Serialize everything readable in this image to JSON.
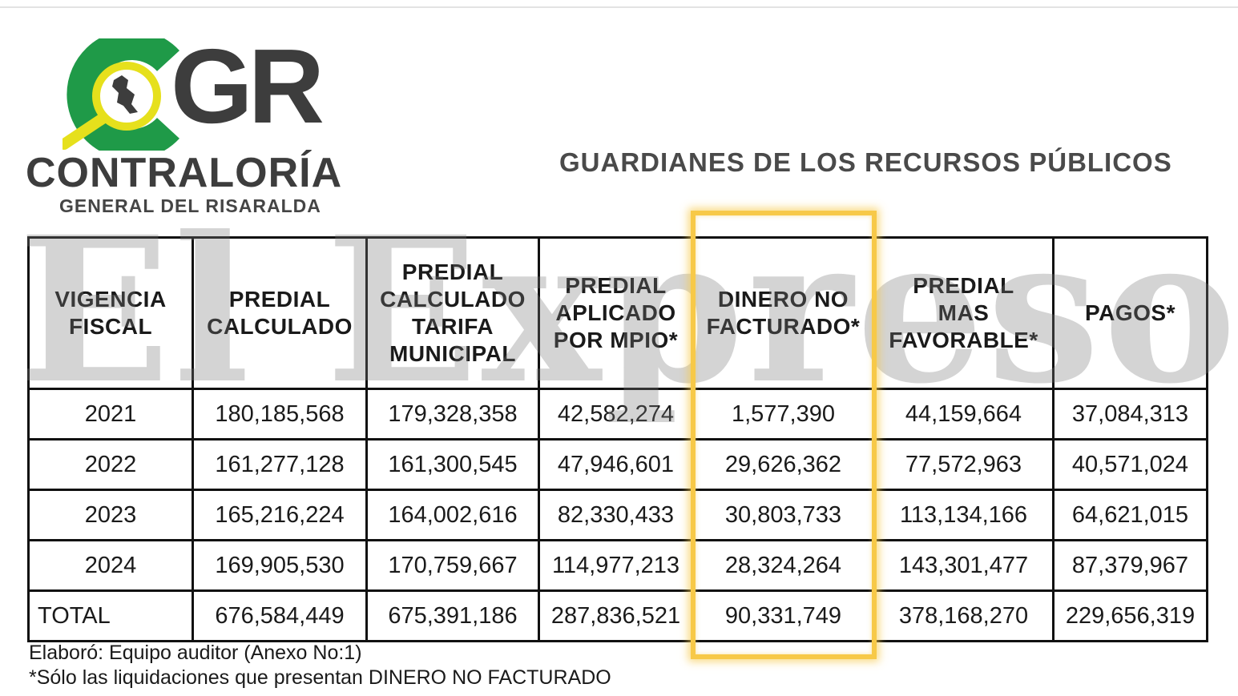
{
  "logo": {
    "acronym": "GR",
    "name": "CONTRALORÍA",
    "subtitle": "GENERAL DEL RISARALDA",
    "colors": {
      "green": "#1f9a48",
      "yellow": "#e6e01c",
      "dark": "#3d3d3d"
    }
  },
  "slogan": "GUARDIANES DE LOS RECURSOS PÚBLICOS",
  "watermark": "El Expreso",
  "table": {
    "headers": [
      [
        "VIGENCIA",
        "FISCAL"
      ],
      [
        "PREDIAL",
        "CALCULADO"
      ],
      [
        "PREDIAL",
        "CALCULADO",
        "TARIFA",
        "MUNICIPAL"
      ],
      [
        "PREDIAL",
        "APLICADO",
        "POR MPIO*"
      ],
      [
        "DINERO NO",
        "FACTURADO*"
      ],
      [
        "PREDIAL",
        "MAS",
        "FAVORABLE*"
      ],
      [
        "PAGOS*"
      ]
    ],
    "rows": [
      [
        "2021",
        "180,185,568",
        "179,328,358",
        "42,582,274",
        "1,577,390",
        "44,159,664",
        "37,084,313"
      ],
      [
        "2022",
        "161,277,128",
        "161,300,545",
        "47,946,601",
        "29,626,362",
        "77,572,963",
        "40,571,024"
      ],
      [
        "2023",
        "165,216,224",
        "164,002,616",
        "82,330,433",
        "30,803,733",
        "113,134,166",
        "64,621,015"
      ],
      [
        "2024",
        "169,905,530",
        "170,759,667",
        "114,977,213",
        "28,324,264",
        "143,301,477",
        "87,379,967"
      ]
    ],
    "total": [
      "TOTAL",
      "676,584,449",
      "675,391,186",
      "287,836,521",
      "90,331,749",
      "378,168,270",
      "229,656,319"
    ],
    "highlight_color": "#f7c948"
  },
  "footnotes": [
    "Elaboró: Equipo auditor (Anexo No:1)",
    "*Sólo las liquidaciones que presentan DINERO NO FACTURADO"
  ]
}
